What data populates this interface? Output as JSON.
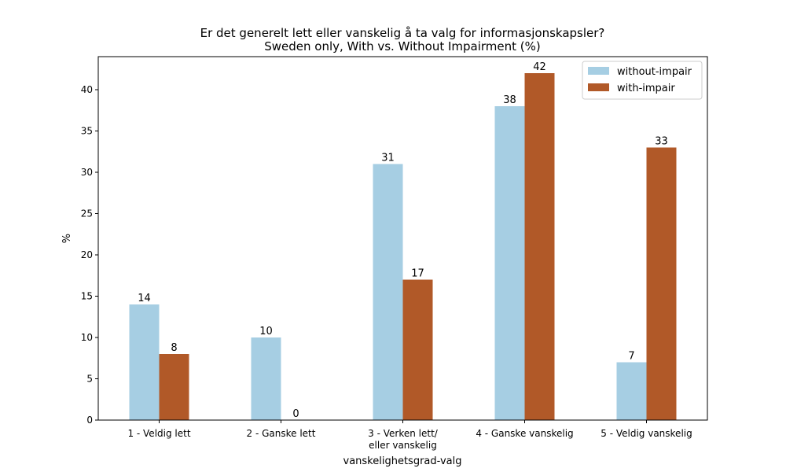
{
  "chart_data": {
    "type": "bar",
    "title": "Er det generelt lett eller vanskelig å ta valg for informasjonskapsler?",
    "subtitle": "Sweden only, With vs. Without Impairment (%)",
    "xlabel": "vanskelighetsgrad-valg",
    "ylabel": "%",
    "ylim": [
      0,
      44
    ],
    "yticks": [
      "0",
      "5",
      "10",
      "15",
      "20",
      "25",
      "30",
      "35",
      "40"
    ],
    "categories": [
      [
        "1 - Veldig lett"
      ],
      [
        "2 - Ganske lett"
      ],
      [
        "3 - Verken lett/",
        "eller vanskelig"
      ],
      [
        "4 - Ganske vanskelig"
      ],
      [
        "5 - Veldig vanskelig"
      ]
    ],
    "series": [
      {
        "name": "without-impair",
        "color": "#a6cee3",
        "values": [
          14,
          10,
          31,
          38,
          7
        ]
      },
      {
        "name": "with-impair",
        "color": "#b15928",
        "values": [
          8,
          0,
          17,
          42,
          33
        ]
      }
    ],
    "legend_position": "top-right",
    "grid": false
  }
}
